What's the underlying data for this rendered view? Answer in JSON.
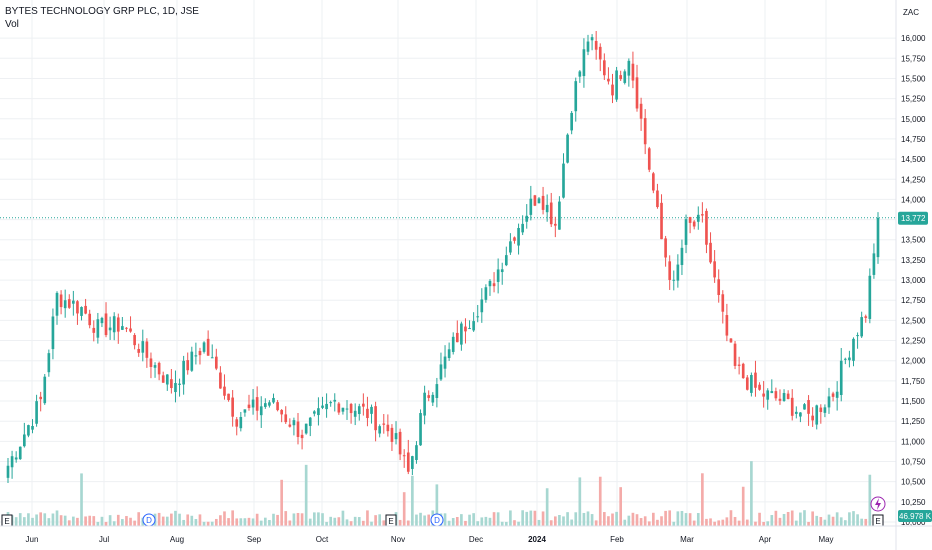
{
  "legend": {
    "symbol": "BYTES TECHNOLOGY GRP PLC, 1D, JSE",
    "volume_label": "Vol"
  },
  "currency": "ZAC",
  "markers": {
    "earnings": "E",
    "dividend": "D"
  },
  "colors": {
    "up": "#26a69a",
    "down": "#ef5350",
    "vol_up": "#a7d7d1",
    "vol_down": "#f4aba9",
    "grid": "#eef0f3",
    "price_line": "#26a69a",
    "dividend": "#2962ff",
    "flash": "#9c27b0"
  },
  "chart_data": {
    "type": "candlestick",
    "title": "BYTES TECHNOLOGY GRP PLC, 1D, JSE",
    "y_range": [
      10000,
      16200
    ],
    "y_ticks": [
      10000,
      10250,
      10500,
      10750,
      11000,
      11250,
      11500,
      11750,
      12000,
      12250,
      12500,
      12750,
      13000,
      13250,
      13500,
      13750,
      14000,
      14250,
      14500,
      14750,
      15000,
      15250,
      15500,
      15750,
      16000
    ],
    "y_tick_labels": [
      "10,000",
      "10,250",
      "10,500",
      "10,750",
      "11,000",
      "11,250",
      "11,500",
      "11,750",
      "12,000",
      "12,250",
      "12,500",
      "12,750",
      "13,000",
      "13,250",
      "13,500",
      "13,750",
      "14,000",
      "14,250",
      "14,500",
      "14,750",
      "15,000",
      "15,250",
      "15,500",
      "15,750",
      "16,000"
    ],
    "x_labels": [
      "Jun",
      "Jul",
      "Aug",
      "Sep",
      "Oct",
      "Nov",
      "Dec",
      "2024",
      "Feb",
      "Mar",
      "Apr",
      "May"
    ],
    "last_price": 13772,
    "last_price_label": "13,772",
    "last_volume_label": "46.978 K",
    "price_anchors": [
      [
        0,
        10700
      ],
      [
        8,
        11500
      ],
      [
        12,
        12800
      ],
      [
        18,
        12650
      ],
      [
        22,
        12400
      ],
      [
        28,
        12450
      ],
      [
        34,
        12050
      ],
      [
        40,
        11700
      ],
      [
        48,
        12200
      ],
      [
        56,
        11300
      ],
      [
        64,
        11500
      ],
      [
        72,
        11100
      ],
      [
        80,
        11500
      ],
      [
        88,
        11350
      ],
      [
        94,
        11100
      ],
      [
        98,
        10600
      ],
      [
        102,
        11500
      ],
      [
        110,
        12300
      ],
      [
        118,
        12900
      ],
      [
        124,
        13600
      ],
      [
        130,
        14100
      ],
      [
        134,
        13700
      ],
      [
        138,
        15200
      ],
      [
        142,
        16000
      ],
      [
        148,
        15400
      ],
      [
        152,
        15800
      ],
      [
        156,
        14700
      ],
      [
        160,
        13500
      ],
      [
        163,
        12900
      ],
      [
        166,
        13650
      ],
      [
        170,
        13700
      ],
      [
        175,
        12500
      ],
      [
        178,
        11900
      ],
      [
        184,
        11600
      ],
      [
        190,
        11500
      ],
      [
        196,
        11300
      ],
      [
        202,
        11600
      ],
      [
        207,
        12300
      ],
      [
        210,
        12600
      ],
      [
        213,
        13772
      ]
    ],
    "volume_max": 1600000
  }
}
